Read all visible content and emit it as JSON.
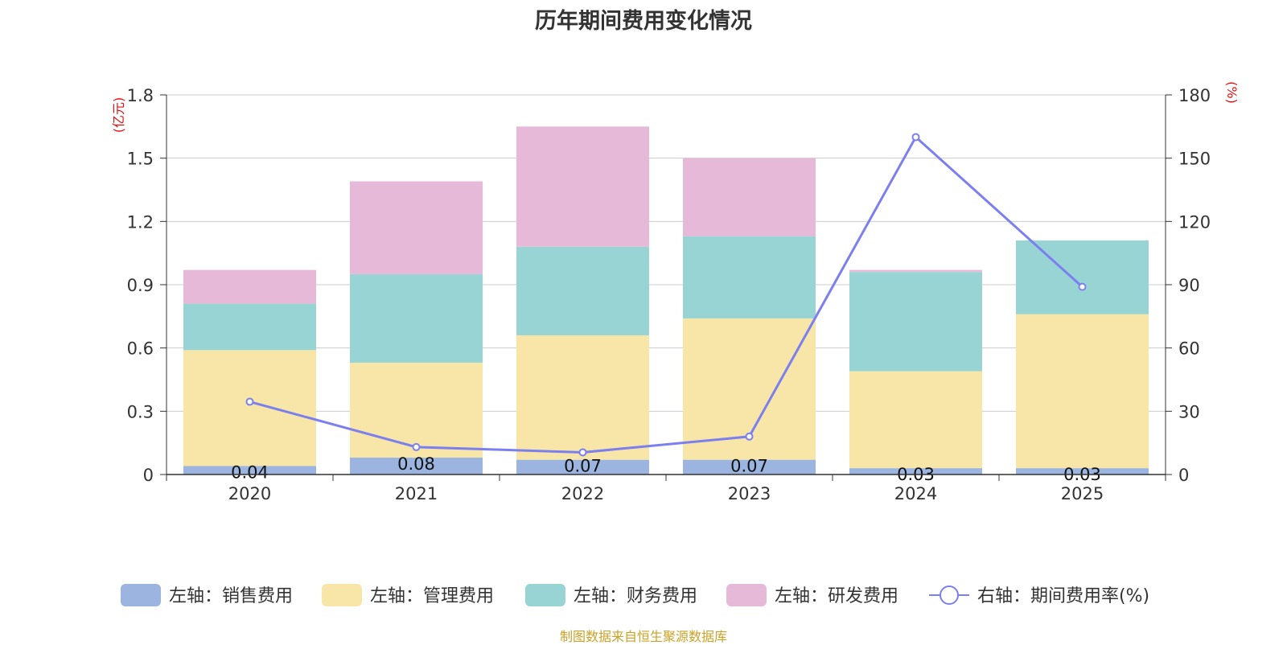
{
  "chart_data": {
    "type": "bar",
    "title": "历年期间费用变化情况",
    "categories": [
      "2020",
      "2021",
      "2022",
      "2023",
      "2024",
      "2025"
    ],
    "left_axis": {
      "unit_label": "(亿元)",
      "ylim": [
        0,
        1.8
      ],
      "ticks": [
        "0",
        "0.3",
        "0.6",
        "0.9",
        "1.2",
        "1.5",
        "1.8"
      ]
    },
    "right_axis": {
      "unit_label": "(%)",
      "ylim": [
        0,
        180
      ],
      "ticks": [
        "0",
        "30",
        "60",
        "90",
        "120",
        "150",
        "180"
      ]
    },
    "series": [
      {
        "name": "左轴：销售费用",
        "kind": "bar",
        "axis": "left",
        "color": "#9bb5e0",
        "values": [
          0.04,
          0.08,
          0.07,
          0.07,
          0.03,
          0.03
        ],
        "labels": [
          "0.04",
          "0.08",
          "0.07",
          "0.07",
          "0.03",
          "0.03"
        ]
      },
      {
        "name": "左轴：管理费用",
        "kind": "bar",
        "axis": "left",
        "color": "#f7e6a8",
        "values": [
          0.55,
          0.45,
          0.59,
          0.67,
          0.46,
          0.73
        ]
      },
      {
        "name": "左轴：财务费用",
        "kind": "bar",
        "axis": "left",
        "color": "#98d4d4",
        "values": [
          0.22,
          0.42,
          0.42,
          0.39,
          0.47,
          0.35
        ]
      },
      {
        "name": "左轴：研发费用",
        "kind": "bar",
        "axis": "left",
        "color": "#e6b9d9",
        "values": [
          0.16,
          0.44,
          0.57,
          0.37,
          0.01,
          0.0
        ]
      },
      {
        "name": "右轴：期间费用率(%)",
        "kind": "line",
        "axis": "right",
        "color": "#7b7fef",
        "values": [
          34.5,
          13.0,
          10.5,
          18.0,
          160.0,
          89.0
        ]
      }
    ]
  },
  "source_text": "制图数据来自恒生聚源数据库"
}
